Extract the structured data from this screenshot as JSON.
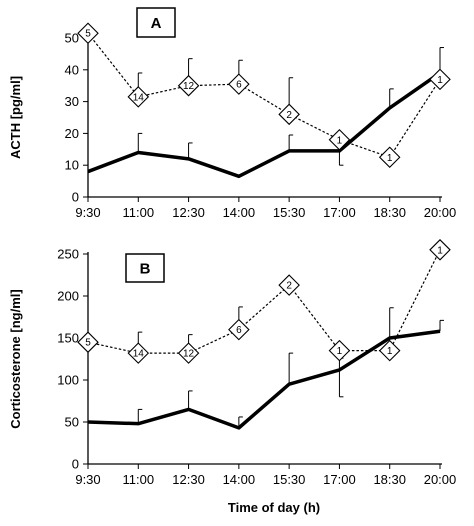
{
  "chart_data": [
    {
      "type": "line",
      "panel_label": "A",
      "ylabel": "ACTH  [pg/ml]",
      "xlabel": "",
      "categories": [
        "9:30",
        "11:00",
        "12:30",
        "14:00",
        "15:30",
        "17:00",
        "18:30",
        "20:00"
      ],
      "ylim": [
        0,
        50
      ],
      "yticks": [
        "0",
        "10",
        "20",
        "30",
        "40",
        "50"
      ],
      "series": [
        {
          "style": "solid-thick",
          "values": [
            8,
            14,
            12,
            6.5,
            14.5,
            14.5,
            28,
            39
          ],
          "error_plus": [
            null,
            6,
            5,
            null,
            5,
            4,
            6,
            8
          ]
        },
        {
          "style": "dotted-diamond",
          "values": [
            51.5,
            31.5,
            35,
            35.5,
            26,
            18,
            12.5,
            37
          ],
          "error_plus": [
            null,
            7.5,
            8.5,
            7.5,
            11.5,
            null,
            null,
            null
          ],
          "error_minus": [
            null,
            null,
            null,
            null,
            null,
            8,
            null,
            null
          ],
          "marker_labels": [
            "5",
            "14",
            "12",
            "6",
            "2",
            "1",
            "1",
            "1"
          ]
        }
      ]
    },
    {
      "type": "line",
      "panel_label": "B",
      "ylabel": "Corticosterone  [ng/ml]",
      "xlabel": "Time of day (h)",
      "categories": [
        "9:30",
        "11:00",
        "12:30",
        "14:00",
        "15:30",
        "17:00",
        "18:30",
        "20:00"
      ],
      "ylim": [
        0,
        250
      ],
      "yticks": [
        "0",
        "50",
        "100",
        "150",
        "200",
        "250"
      ],
      "series": [
        {
          "style": "solid-thick",
          "values": [
            50,
            48,
            65,
            43,
            95,
            112,
            150,
            158
          ],
          "error_plus": [
            null,
            17,
            22,
            13,
            37,
            14,
            36,
            13
          ],
          "error_minus": [
            null,
            null,
            null,
            null,
            null,
            32,
            null,
            null
          ]
        },
        {
          "style": "dotted-diamond",
          "values": [
            145,
            132,
            132,
            160,
            213,
            135,
            135,
            255
          ],
          "error_plus": [
            null,
            25,
            22,
            27,
            null,
            null,
            null,
            null
          ],
          "marker_labels": [
            "5",
            "14",
            "12",
            "6",
            "2",
            "1",
            "1",
            "1"
          ]
        }
      ]
    }
  ]
}
